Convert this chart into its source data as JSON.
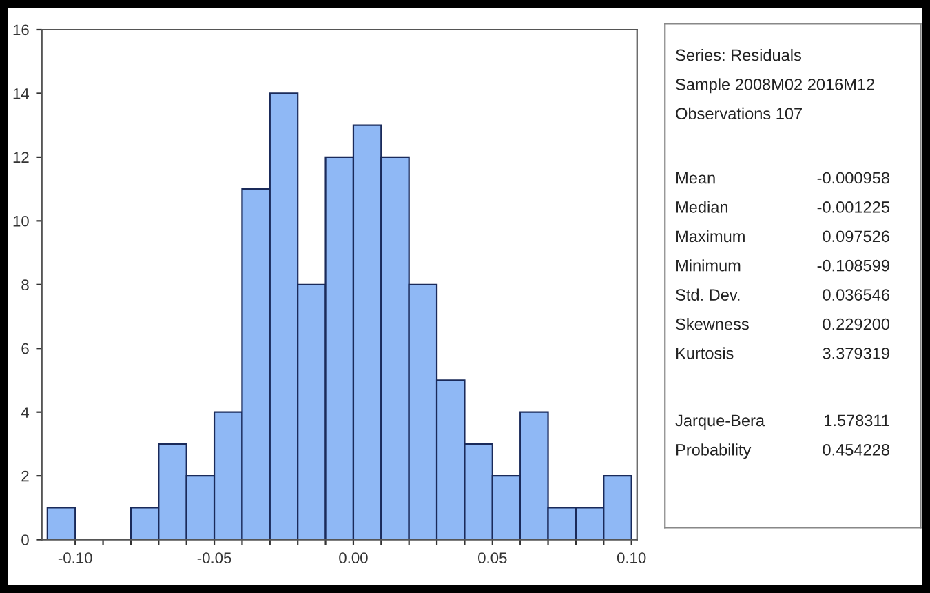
{
  "chart_data": {
    "type": "histogram",
    "bins": [
      -0.11,
      -0.1,
      -0.09,
      -0.08,
      -0.07,
      -0.06,
      -0.05,
      -0.04,
      -0.03,
      -0.02,
      -0.01,
      0.0,
      0.01,
      0.02,
      0.03,
      0.04,
      0.05,
      0.06,
      0.07,
      0.08,
      0.09,
      0.1
    ],
    "values": [
      1,
      0,
      0,
      1,
      3,
      2,
      4,
      11,
      14,
      8,
      12,
      13,
      12,
      8,
      5,
      3,
      2,
      4,
      1,
      1,
      2
    ],
    "color": "#8fb8f5",
    "xlim": [
      -0.112,
      0.102
    ],
    "xticks": [
      {
        "value": -0.1,
        "label": "-0.10"
      },
      {
        "value": -0.09,
        "label": null
      },
      {
        "value": -0.08,
        "label": null
      },
      {
        "value": -0.07,
        "label": null
      },
      {
        "value": -0.06,
        "label": null
      },
      {
        "value": -0.05,
        "label": "-0.05"
      },
      {
        "value": -0.04,
        "label": null
      },
      {
        "value": -0.03,
        "label": null
      },
      {
        "value": -0.02,
        "label": null
      },
      {
        "value": -0.01,
        "label": null
      },
      {
        "value": 0.0,
        "label": "0.00"
      },
      {
        "value": 0.01,
        "label": null
      },
      {
        "value": 0.02,
        "label": null
      },
      {
        "value": 0.03,
        "label": null
      },
      {
        "value": 0.04,
        "label": null
      },
      {
        "value": 0.05,
        "label": "0.05"
      },
      {
        "value": 0.06,
        "label": null
      },
      {
        "value": 0.07,
        "label": null
      },
      {
        "value": 0.08,
        "label": null
      },
      {
        "value": 0.09,
        "label": null
      },
      {
        "value": 0.1,
        "label": "0.10"
      }
    ],
    "ylim": [
      0,
      16
    ],
    "yticks": [
      0,
      2,
      4,
      6,
      8,
      10,
      12,
      14,
      16
    ],
    "grid": false,
    "annotations": [
      "Series: Residuals",
      "Sample 2008M02 2016M12",
      "Observations 107",
      "Mean",
      "-0.000958",
      "Median",
      "-0.001225",
      "Maximum",
      "0.097526",
      "Minimum",
      "-0.108599",
      "Std. Dev.",
      "0.036546",
      "Skewness",
      "0.229200",
      "Kurtosis",
      "3.379319",
      "Jarque-Bera",
      "1.578311",
      "Probability",
      "0.454228"
    ]
  }
}
